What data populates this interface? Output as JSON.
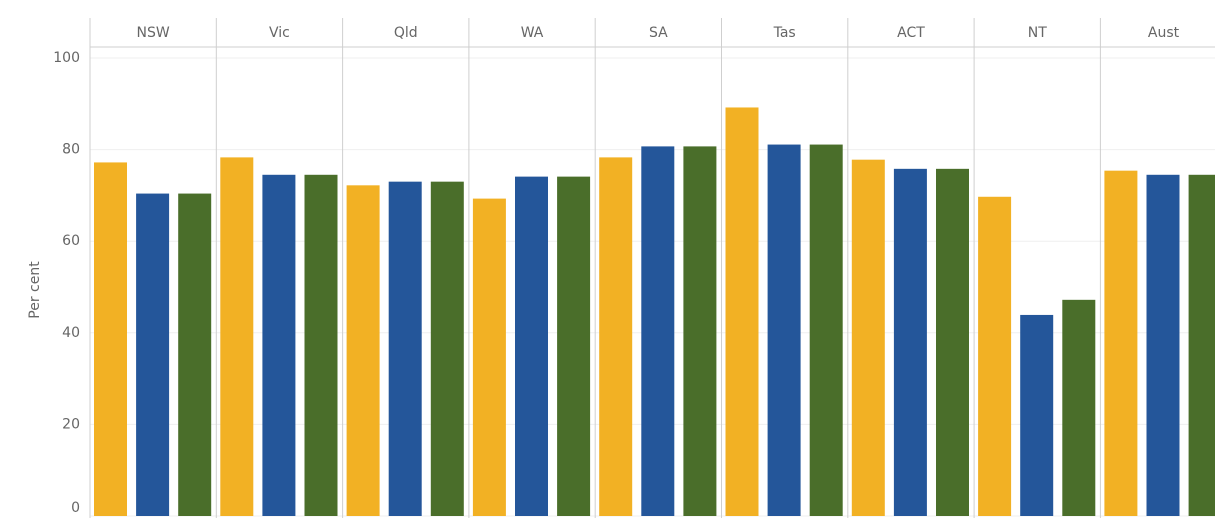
{
  "chart_data": {
    "type": "bar",
    "y_label": "Per cent",
    "categories": [
      "NSW",
      "Vic",
      "Qld",
      "WA",
      "SA",
      "Tas",
      "ACT",
      "NT",
      "Aust"
    ],
    "series": [
      {
        "color": "#f2b124",
        "values": [
          77.2,
          78.3,
          72.2,
          69.3,
          78.3,
          89.2,
          77.8,
          69.7,
          75.4
        ]
      },
      {
        "color": "#24569a",
        "values": [
          70.4,
          74.5,
          73.0,
          74.1,
          80.7,
          81.1,
          75.8,
          43.9,
          74.5
        ]
      },
      {
        "color": "#4a6e2a",
        "values": [
          70.4,
          74.5,
          73.0,
          74.1,
          80.7,
          81.1,
          75.8,
          47.2,
          74.5
        ]
      }
    ],
    "ylim": [
      0,
      100
    ],
    "yticks": [
      0,
      20,
      40,
      60,
      80,
      100
    ],
    "grid": true
  }
}
